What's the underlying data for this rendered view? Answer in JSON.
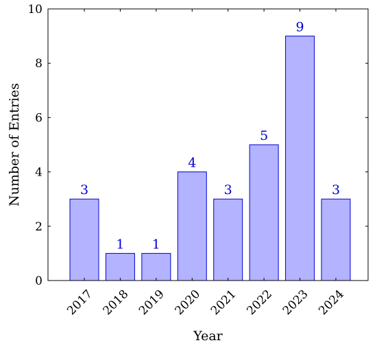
{
  "chart_data": {
    "type": "bar",
    "categories": [
      "2017",
      "2018",
      "2019",
      "2020",
      "2021",
      "2022",
      "2023",
      "2024"
    ],
    "values": [
      3,
      1,
      1,
      4,
      3,
      5,
      9,
      3
    ],
    "data_labels": [
      "3",
      "1",
      "1",
      "4",
      "3",
      "5",
      "9",
      "3"
    ],
    "xlabel": "Year",
    "ylabel": "Number of Entries",
    "ylim": [
      0,
      10
    ],
    "yticks": [
      0,
      2,
      4,
      6,
      8,
      10
    ],
    "ytick_labels": [
      "0",
      "2",
      "4",
      "6",
      "8",
      "10"
    ],
    "grid": false,
    "colors": {
      "bar_fill": "#b3b3ff",
      "bar_stroke": "#0000cc",
      "data_label": "#0000cc",
      "axis": "#000000"
    }
  }
}
